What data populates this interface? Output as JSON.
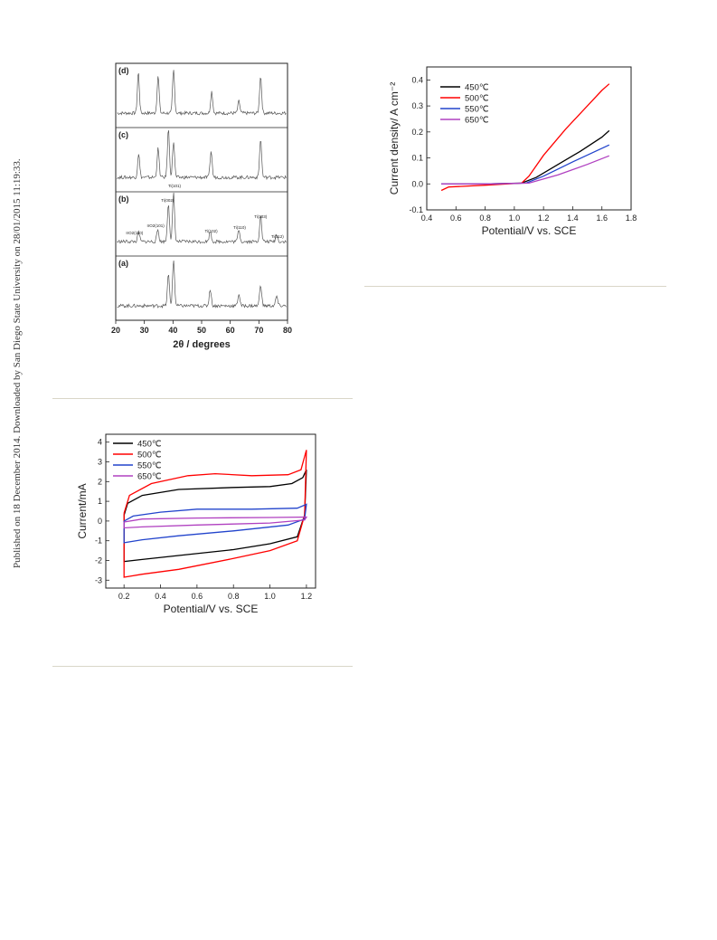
{
  "side_note": "Published on 18 December 2014. Downloaded by San Diego State University on 28/01/2015 11:19:33.",
  "chart_data": [
    {
      "type": "line",
      "title": "",
      "xlabel": "2θ / degrees",
      "ylabel": "",
      "xlim": [
        20,
        80
      ],
      "xticks": [
        20,
        30,
        40,
        50,
        60,
        70,
        80
      ],
      "panel_labels": [
        "(d)",
        "(c)",
        "(b)",
        "(a)"
      ],
      "peak_labels": [
        {
          "text": "Ti(101)",
          "x": 40.2
        },
        {
          "text": "Ti(002)",
          "x": 38.4
        },
        {
          "text": "IrO2(101)",
          "x": 34.7
        },
        {
          "text": "IrO2(110)",
          "x": 28.0
        },
        {
          "text": "Ti(102)",
          "x": 53.0
        },
        {
          "text": "Ti(110)",
          "x": 63.0
        },
        {
          "text": "Ti(103)",
          "x": 70.6
        },
        {
          "text": "Ti(112)",
          "x": 76.2
        }
      ],
      "series": [
        {
          "name": "(d)",
          "peaks": [
            [
              27.9,
              0.85
            ],
            [
              34.8,
              0.78
            ],
            [
              40.2,
              0.9
            ],
            [
              53.5,
              0.45
            ],
            [
              63.0,
              0.25
            ],
            [
              70.6,
              0.78
            ]
          ]
        },
        {
          "name": "(c)",
          "peaks": [
            [
              28.0,
              0.5
            ],
            [
              34.8,
              0.6
            ],
            [
              38.4,
              1.0
            ],
            [
              40.2,
              0.75
            ],
            [
              53.3,
              0.55
            ],
            [
              70.6,
              0.8
            ]
          ]
        },
        {
          "name": "(b)",
          "peaks": [
            [
              28.0,
              0.2
            ],
            [
              34.7,
              0.25
            ],
            [
              38.4,
              0.8
            ],
            [
              40.2,
              1.0
            ],
            [
              53.0,
              0.22
            ],
            [
              63.0,
              0.25
            ],
            [
              70.6,
              0.55
            ],
            [
              76.2,
              0.15
            ]
          ]
        },
        {
          "name": "(a)",
          "peaks": [
            [
              38.4,
              0.65
            ],
            [
              40.2,
              0.95
            ],
            [
              53.0,
              0.35
            ],
            [
              63.0,
              0.25
            ],
            [
              70.6,
              0.45
            ],
            [
              76.2,
              0.2
            ]
          ]
        }
      ]
    },
    {
      "type": "line",
      "title": "",
      "xlabel": "Potential/V vs. SCE",
      "ylabel": "Current density/ A cm⁻²",
      "xlim": [
        0.4,
        1.8
      ],
      "ylim": [
        -0.1,
        0.45
      ],
      "xticks": [
        "0.4",
        "0.6",
        "0.8",
        "1.0",
        "1.2",
        "1.4",
        "1.6",
        "1.8"
      ],
      "yticks": [
        "-0.1",
        "0.0",
        "0.1",
        "0.2",
        "0.3",
        "0.4"
      ],
      "legend_position": "top-left",
      "series": [
        {
          "name": "450℃",
          "color": "#000000",
          "x": [
            0.5,
            0.8,
            1.05,
            1.15,
            1.3,
            1.45,
            1.6,
            1.65
          ],
          "y": [
            0.0,
            0.0,
            0.003,
            0.025,
            0.075,
            0.125,
            0.18,
            0.205
          ]
        },
        {
          "name": "500℃",
          "color": "#ff0000",
          "x": [
            0.5,
            0.55,
            0.8,
            1.05,
            1.1,
            1.2,
            1.35,
            1.5,
            1.6,
            1.65
          ],
          "y": [
            -0.025,
            -0.012,
            -0.005,
            0.003,
            0.03,
            0.11,
            0.21,
            0.3,
            0.36,
            0.385
          ]
        },
        {
          "name": "550℃",
          "color": "#2244cc",
          "x": [
            0.5,
            0.8,
            1.08,
            1.2,
            1.4,
            1.65
          ],
          "y": [
            0.0,
            0.0,
            0.003,
            0.03,
            0.085,
            0.15
          ]
        },
        {
          "name": "650℃",
          "color": "#b040c0",
          "x": [
            0.5,
            0.8,
            1.1,
            1.3,
            1.5,
            1.65
          ],
          "y": [
            0.0,
            0.0,
            0.003,
            0.035,
            0.075,
            0.108
          ]
        }
      ]
    },
    {
      "type": "line",
      "title": "",
      "xlabel": "Potential/V vs. SCE",
      "ylabel": "Current/mA",
      "xlim": [
        0.1,
        1.25
      ],
      "ylim": [
        -3.4,
        4.4
      ],
      "xticks": [
        "0.2",
        "0.4",
        "0.6",
        "0.8",
        "1.0",
        "1.2"
      ],
      "yticks": [
        "-3",
        "-2",
        "-1",
        "0",
        "1",
        "2",
        "3",
        "4"
      ],
      "legend_position": "top-left",
      "series": [
        {
          "name": "450℃",
          "color": "#000000",
          "x": [
            0.2,
            0.22,
            0.3,
            0.5,
            0.8,
            1.0,
            1.12,
            1.18,
            1.2,
            1.19,
            1.15,
            1.0,
            0.8,
            0.5,
            0.3,
            0.2,
            0.2
          ],
          "y": [
            0.3,
            0.9,
            1.3,
            1.6,
            1.7,
            1.75,
            1.9,
            2.2,
            2.6,
            0.3,
            -0.8,
            -1.15,
            -1.45,
            -1.75,
            -1.95,
            -2.05,
            0.3
          ]
        },
        {
          "name": "500℃",
          "color": "#ff0000",
          "x": [
            0.2,
            0.23,
            0.35,
            0.55,
            0.7,
            0.9,
            1.1,
            1.17,
            1.2,
            1.19,
            1.15,
            1.0,
            0.8,
            0.5,
            0.3,
            0.2,
            0.2
          ],
          "y": [
            0.4,
            1.3,
            1.9,
            2.3,
            2.4,
            2.3,
            2.35,
            2.6,
            3.6,
            0.3,
            -1.0,
            -1.5,
            -1.9,
            -2.45,
            -2.7,
            -2.85,
            0.4
          ]
        },
        {
          "name": "550℃",
          "color": "#2244cc",
          "x": [
            0.2,
            0.25,
            0.4,
            0.6,
            0.9,
            1.15,
            1.2,
            1.19,
            1.1,
            0.8,
            0.5,
            0.3,
            0.2,
            0.2
          ],
          "y": [
            0.0,
            0.25,
            0.45,
            0.6,
            0.6,
            0.65,
            0.85,
            0.1,
            -0.2,
            -0.5,
            -0.75,
            -0.95,
            -1.1,
            0.0
          ]
        },
        {
          "name": "650℃",
          "color": "#b040c0",
          "x": [
            0.2,
            0.3,
            0.6,
            1.0,
            1.2,
            1.19,
            1.0,
            0.6,
            0.3,
            0.2,
            0.2
          ],
          "y": [
            -0.05,
            0.1,
            0.15,
            0.18,
            0.2,
            0.05,
            -0.1,
            -0.2,
            -0.3,
            -0.35,
            -0.05
          ]
        }
      ]
    }
  ]
}
